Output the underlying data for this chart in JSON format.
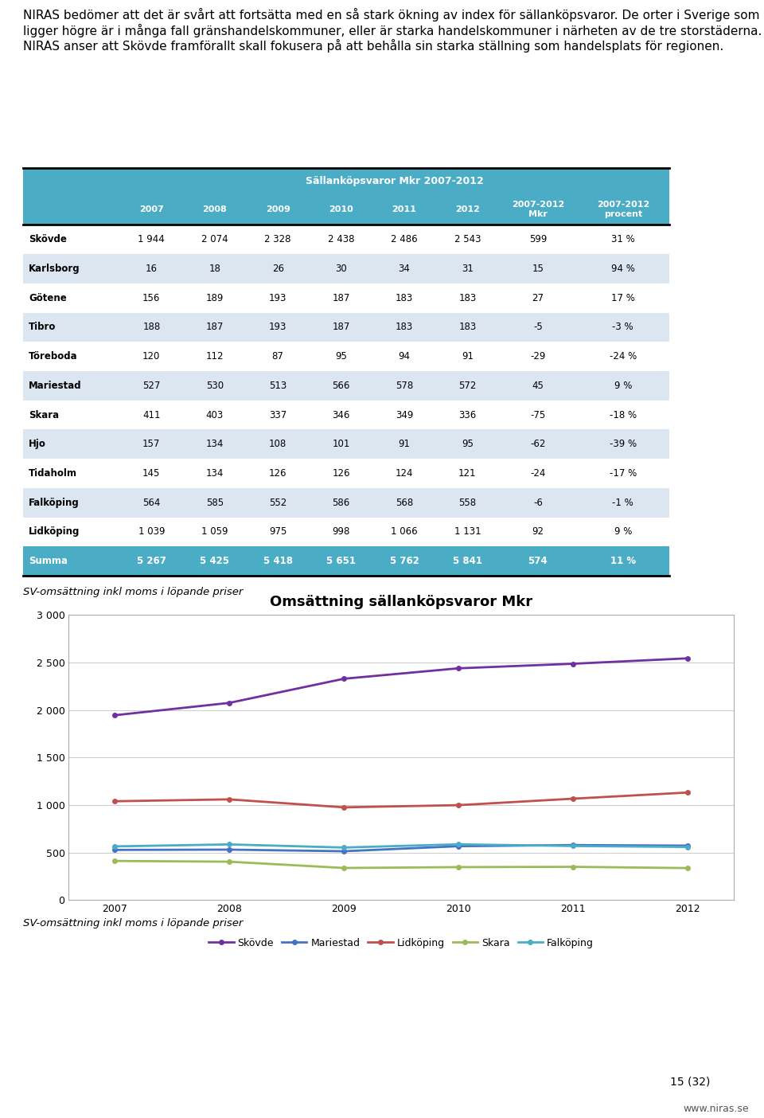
{
  "intro_text": "NIRAS bedömer att det är svårt att fortsätta med en så stark ökning av index för sällanköpsvaror. De orter i Sverige som ligger högre är i många fall gränshandelskommuner, eller är starka handelskommuner i närheten av de tre storstäderna. NIRAS anser att Skövde framförallt skall fokusera på att behålla sin starka ställning som handelsplats för regionen.",
  "table_header": "Sällanköpsvaror Mkr 2007-2012",
  "col_headers": [
    "2007",
    "2008",
    "2009",
    "2010",
    "2011",
    "2012",
    "2007-2012\nMkr",
    "2007-2012\nprocent"
  ],
  "row_labels": [
    "Skövde",
    "Karlsborg",
    "Götene",
    "Tibro",
    "Töreboda",
    "Mariestad",
    "Skara",
    "Hjo",
    "Tidaholm",
    "Falköping",
    "Lidköping",
    "Summa"
  ],
  "table_data": [
    [
      "1 944",
      "2 074",
      "2 328",
      "2 438",
      "2 486",
      "2 543",
      "599",
      "31 %"
    ],
    [
      "16",
      "18",
      "26",
      "30",
      "34",
      "31",
      "15",
      "94 %"
    ],
    [
      "156",
      "189",
      "193",
      "187",
      "183",
      "183",
      "27",
      "17 %"
    ],
    [
      "188",
      "187",
      "193",
      "187",
      "183",
      "183",
      "-5",
      "-3 %"
    ],
    [
      "120",
      "112",
      "87",
      "95",
      "94",
      "91",
      "-29",
      "-24 %"
    ],
    [
      "527",
      "530",
      "513",
      "566",
      "578",
      "572",
      "45",
      "9 %"
    ],
    [
      "411",
      "403",
      "337",
      "346",
      "349",
      "336",
      "-75",
      "-18 %"
    ],
    [
      "157",
      "134",
      "108",
      "101",
      "91",
      "95",
      "-62",
      "-39 %"
    ],
    [
      "145",
      "134",
      "126",
      "126",
      "124",
      "121",
      "-24",
      "-17 %"
    ],
    [
      "564",
      "585",
      "552",
      "586",
      "568",
      "558",
      "-6",
      "-1 %"
    ],
    [
      "1 039",
      "1 059",
      "975",
      "998",
      "1 066",
      "1 131",
      "92",
      "9 %"
    ],
    [
      "5 267",
      "5 425",
      "5 418",
      "5 651",
      "5 762",
      "5 841",
      "574",
      "11 %"
    ]
  ],
  "header_bg": "#4bacc6",
  "header_text": "#ffffff",
  "row_bg_odd": "#ffffff",
  "row_bg_even": "#dce6f1",
  "summa_bg": "#4bacc6",
  "summa_text": "#ffffff",
  "border_color": "#000000",
  "note_text": "SV-omsättning inkl moms i löpande priser",
  "chart_title": "Omsättning sällanköpsvaror Mkr",
  "years": [
    2007,
    2008,
    2009,
    2010,
    2011,
    2012
  ],
  "series_names": [
    "Skövde",
    "Mariestad",
    "Lidköping",
    "Skara",
    "Falköping"
  ],
  "series_data": {
    "Skövde": [
      1944,
      2074,
      2328,
      2438,
      2486,
      2543
    ],
    "Mariestad": [
      527,
      530,
      513,
      566,
      578,
      572
    ],
    "Lidköping": [
      1039,
      1059,
      975,
      998,
      1066,
      1131
    ],
    "Skara": [
      411,
      403,
      337,
      346,
      349,
      336
    ],
    "Falköping": [
      564,
      585,
      552,
      586,
      568,
      558
    ]
  },
  "series_colors": {
    "Skövde": "#7030a0",
    "Mariestad": "#4472c4",
    "Lidköping": "#c0504d",
    "Skara": "#9bbb59",
    "Falköping": "#4bacc6"
  },
  "page_number": "15 (32)",
  "website": "www.niras.se"
}
